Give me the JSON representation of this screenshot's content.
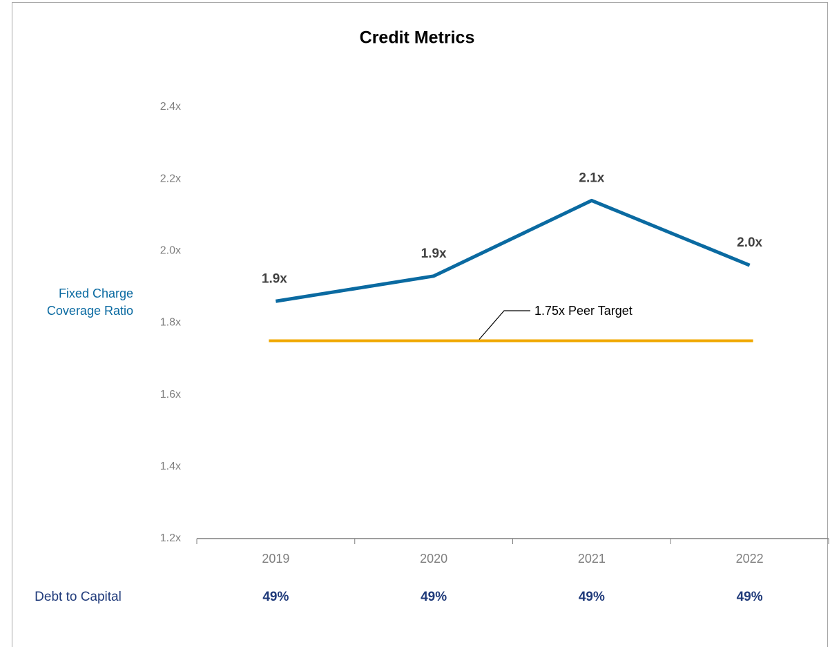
{
  "chart_data": {
    "type": "line",
    "title": "Credit Metrics",
    "y_label": [
      "Fixed Charge",
      "Coverage Ratio"
    ],
    "categories": [
      "2019",
      "2020",
      "2021",
      "2022"
    ],
    "series": [
      {
        "name": "Fixed Charge Coverage Ratio",
        "color": "#0a6aa1",
        "values": [
          1.86,
          1.93,
          2.14,
          1.96
        ],
        "value_labels": [
          "1.9x",
          "1.9x",
          "2.1x",
          "2.0x"
        ]
      }
    ],
    "reference": {
      "value": 1.75,
      "label": "1.75x Peer Target",
      "color": "#f0a800"
    },
    "ylim": [
      1.2,
      2.4
    ],
    "yticks": [
      {
        "value": 1.2,
        "label": "1.2x"
      },
      {
        "value": 1.4,
        "label": "1.4x"
      },
      {
        "value": 1.6,
        "label": "1.6x"
      },
      {
        "value": 1.8,
        "label": "1.8x"
      },
      {
        "value": 2.0,
        "label": "2.0x"
      },
      {
        "value": 2.2,
        "label": "2.2x"
      },
      {
        "value": 2.4,
        "label": "2.4x"
      }
    ],
    "grid": false,
    "table_row": {
      "label": "Debt to Capital",
      "values": [
        49,
        49,
        49,
        49
      ],
      "value_labels": [
        "49%",
        "49%",
        "49%",
        "49%"
      ],
      "color": "#1f3a7a"
    }
  }
}
